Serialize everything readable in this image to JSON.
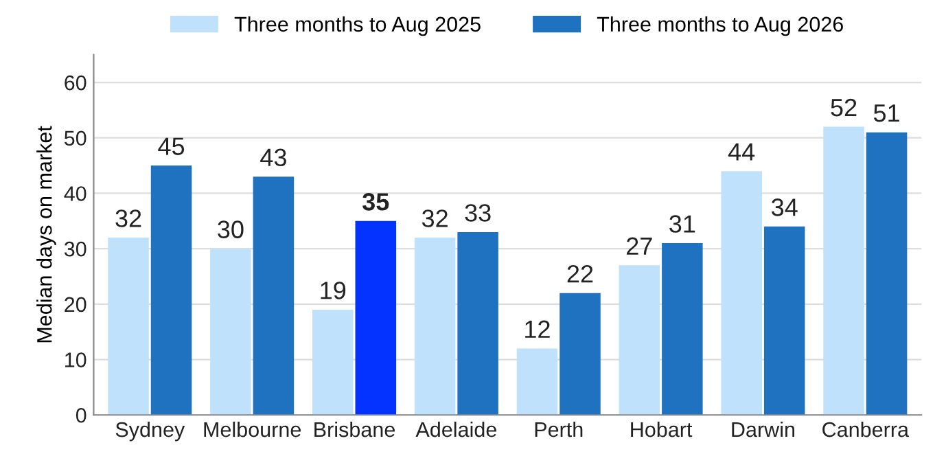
{
  "chart_data": {
    "type": "bar",
    "categories": [
      "Sydney",
      "Melbourne",
      "Brisbane",
      "Adelaide",
      "Perth",
      "Hobart",
      "Darwin",
      "Canberra"
    ],
    "series": [
      {
        "name": "Three months to Aug 2025",
        "color": "#bfe1fb",
        "values": [
          32,
          30,
          19,
          32,
          12,
          27,
          44,
          52
        ]
      },
      {
        "name": "Three months to Aug 2026",
        "color": "#1f72c0",
        "colors": [
          "#1f72c0",
          "#1f72c0",
          "#0433ff",
          "#1f72c0",
          "#1f72c0",
          "#1f72c0",
          "#1f72c0",
          "#1f72c0"
        ],
        "values": [
          45,
          43,
          35,
          33,
          22,
          31,
          34,
          51
        ]
      }
    ],
    "ylabel": "Median days on market",
    "ylim": [
      0,
      65
    ],
    "yticks": [
      0,
      10,
      20,
      30,
      40,
      50,
      60
    ],
    "grid": "y",
    "legend": "top",
    "data_labels": true
  }
}
